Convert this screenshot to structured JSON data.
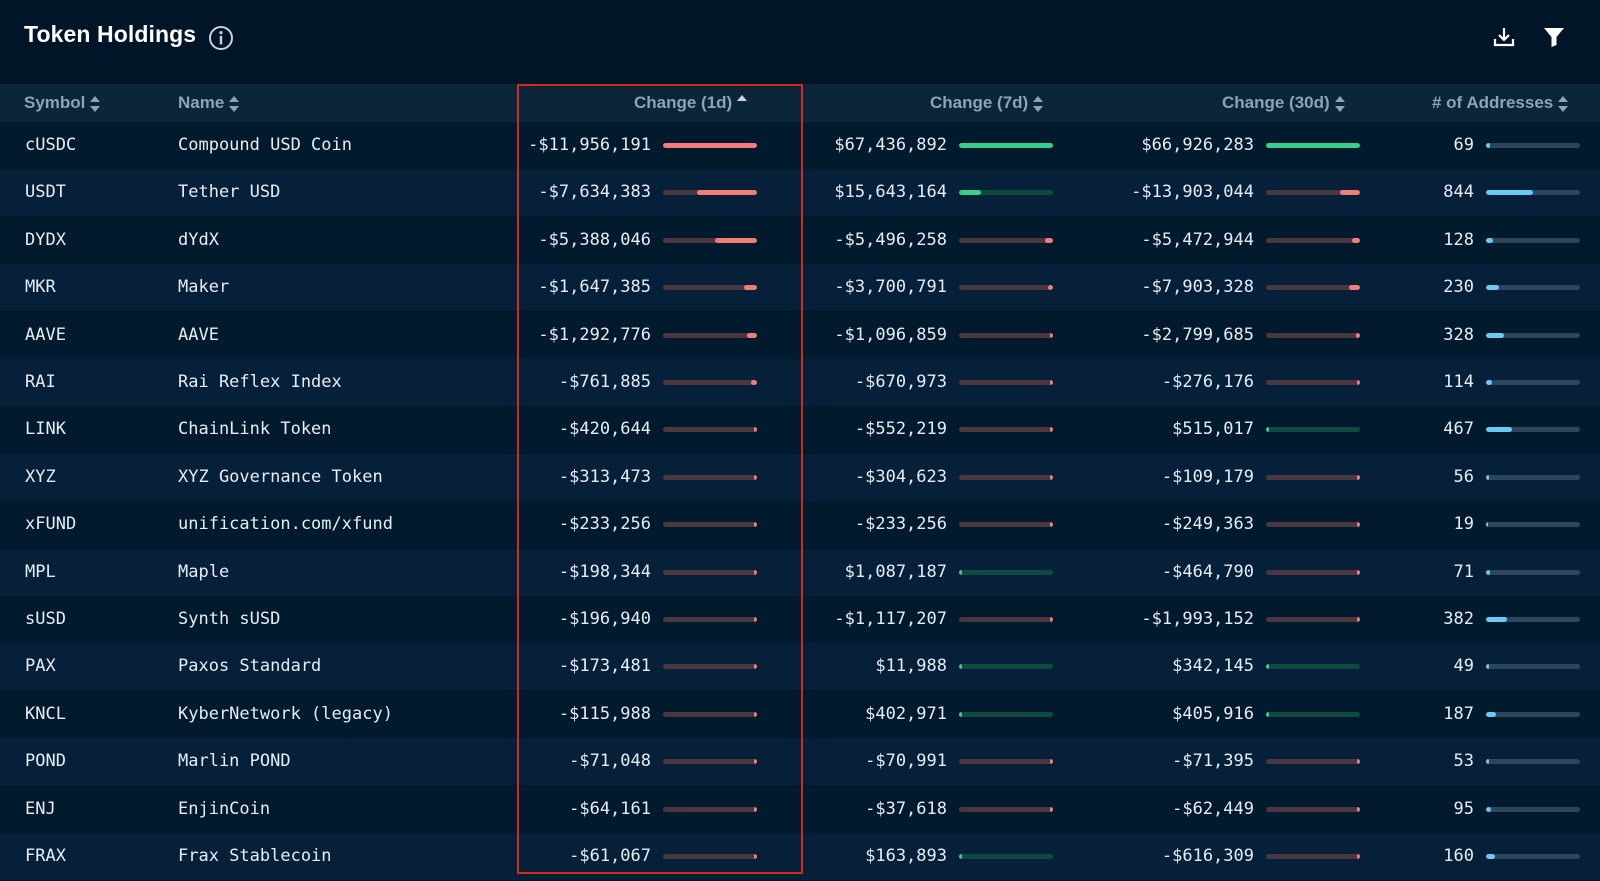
{
  "header": {
    "title": "Token Holdings",
    "icons": [
      "info-icon",
      "download-icon",
      "filter-icon"
    ]
  },
  "columns": [
    {
      "key": "symbol",
      "label": "Symbol",
      "sort": "none"
    },
    {
      "key": "name",
      "label": "Name",
      "sort": "none"
    },
    {
      "key": "change_1d",
      "label": "Change (1d)",
      "sort": "ascending"
    },
    {
      "key": "change_7d",
      "label": "Change (7d)",
      "sort": "none"
    },
    {
      "key": "change_30d",
      "label": "Change (30d)",
      "sort": "none"
    },
    {
      "key": "addresses",
      "label": "# of Addresses",
      "sort": "none"
    }
  ],
  "colors": {
    "background": "#001628",
    "header_row": "#0b2539",
    "negative_bar": "#f77b76",
    "positive_bar": "#35d08a",
    "address_bar": "#6cc9f5",
    "bar_track_negative": "#4a3740",
    "bar_track_positive": "#0f4a40",
    "bar_track_neutral": "#2c465b",
    "highlight_border": "#d4291b"
  },
  "rows": [
    {
      "symbol": "cUSDC",
      "name": "Compound USD Coin",
      "change_1d": "-$11,956,191",
      "change_7d": "$67,436,892",
      "change_30d": "$66,926,283",
      "addresses": "69"
    },
    {
      "symbol": "USDT",
      "name": "Tether USD",
      "change_1d": "-$7,634,383",
      "change_7d": "$15,643,164",
      "change_30d": "-$13,903,044",
      "addresses": "844"
    },
    {
      "symbol": "DYDX",
      "name": "dYdX",
      "change_1d": "-$5,388,046",
      "change_7d": "-$5,496,258",
      "change_30d": "-$5,472,944",
      "addresses": "128"
    },
    {
      "symbol": "MKR",
      "name": "Maker",
      "change_1d": "-$1,647,385",
      "change_7d": "-$3,700,791",
      "change_30d": "-$7,903,328",
      "addresses": "230"
    },
    {
      "symbol": "AAVE",
      "name": "AAVE",
      "change_1d": "-$1,292,776",
      "change_7d": "-$1,096,859",
      "change_30d": "-$2,799,685",
      "addresses": "328"
    },
    {
      "symbol": "RAI",
      "name": "Rai Reflex Index",
      "change_1d": "-$761,885",
      "change_7d": "-$670,973",
      "change_30d": "-$276,176",
      "addresses": "114"
    },
    {
      "symbol": "LINK",
      "name": "ChainLink Token",
      "change_1d": "-$420,644",
      "change_7d": "-$552,219",
      "change_30d": "$515,017",
      "addresses": "467"
    },
    {
      "symbol": "XYZ",
      "name": "XYZ Governance Token",
      "change_1d": "-$313,473",
      "change_7d": "-$304,623",
      "change_30d": "-$109,179",
      "addresses": "56"
    },
    {
      "symbol": "xFUND",
      "name": "unification.com/xfund",
      "change_1d": "-$233,256",
      "change_7d": "-$233,256",
      "change_30d": "-$249,363",
      "addresses": "19"
    },
    {
      "symbol": "MPL",
      "name": "Maple",
      "change_1d": "-$198,344",
      "change_7d": "$1,087,187",
      "change_30d": "-$464,790",
      "addresses": "71"
    },
    {
      "symbol": "sUSD",
      "name": "Synth sUSD",
      "change_1d": "-$196,940",
      "change_7d": "-$1,117,207",
      "change_30d": "-$1,993,152",
      "addresses": "382"
    },
    {
      "symbol": "PAX",
      "name": "Paxos Standard",
      "change_1d": "-$173,481",
      "change_7d": "$11,988",
      "change_30d": "$342,145",
      "addresses": "49"
    },
    {
      "symbol": "KNCL",
      "name": "KyberNetwork (legacy)",
      "change_1d": "-$115,988",
      "change_7d": "$402,971",
      "change_30d": "$405,916",
      "addresses": "187"
    },
    {
      "symbol": "POND",
      "name": "Marlin POND",
      "change_1d": "-$71,048",
      "change_7d": "-$70,991",
      "change_30d": "-$71,395",
      "addresses": "53"
    },
    {
      "symbol": "ENJ",
      "name": "EnjinCoin",
      "change_1d": "-$64,161",
      "change_7d": "-$37,618",
      "change_30d": "-$62,449",
      "addresses": "95"
    },
    {
      "symbol": "FRAX",
      "name": "Frax Stablecoin",
      "change_1d": "-$61,067",
      "change_7d": "$163,893",
      "change_30d": "-$616,309",
      "addresses": "160"
    }
  ]
}
